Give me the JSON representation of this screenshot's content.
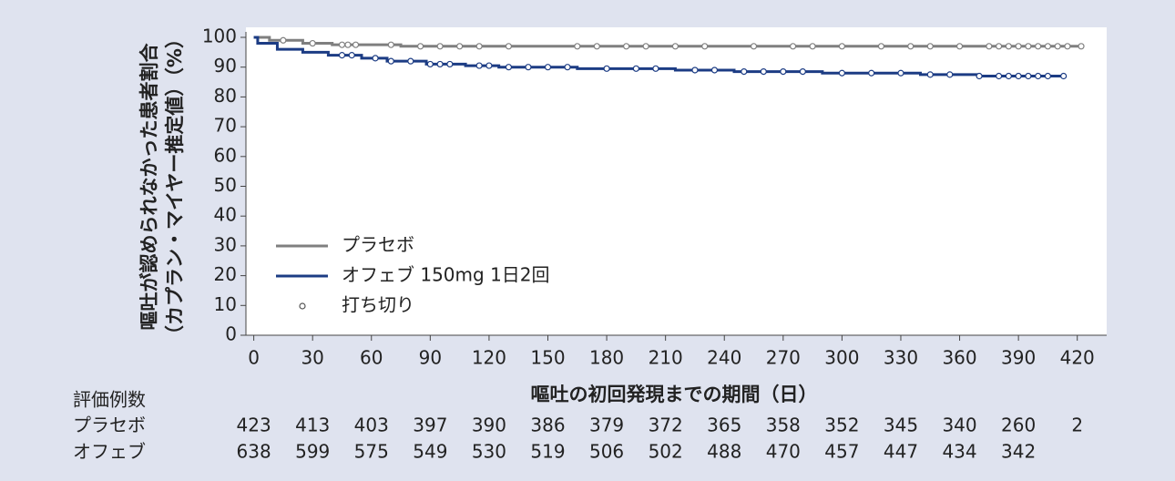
{
  "chart_data": {
    "type": "km",
    "y_label_lines": [
      "嘔吐が認められなかった患者割合",
      "（カプラン・マイヤー推定値）（%）"
    ],
    "x_label": "嘔吐の初回発現までの期間（日）",
    "xlim": [
      -4,
      435
    ],
    "ylim": [
      0,
      100
    ],
    "xticks": [
      0,
      30,
      60,
      90,
      120,
      150,
      180,
      210,
      240,
      270,
      300,
      330,
      360,
      390,
      420
    ],
    "yticks": [
      0,
      10,
      20,
      30,
      40,
      50,
      60,
      70,
      80,
      90,
      100
    ],
    "censor_label": "打ち切り",
    "series": [
      {
        "name": "プラセボ",
        "color": "#7f7f7f",
        "x": [
          0,
          8,
          8,
          25,
          25,
          40,
          40,
          75,
          75,
          422
        ],
        "values": [
          100,
          100,
          99,
          99,
          98,
          98,
          97.5,
          97.5,
          97,
          97
        ],
        "censor_x": [
          15,
          30,
          45,
          48,
          52,
          70,
          85,
          95,
          105,
          115,
          130,
          165,
          175,
          190,
          200,
          215,
          230,
          255,
          275,
          285,
          300,
          320,
          335,
          345,
          360,
          375,
          380,
          385,
          390,
          395,
          400,
          405,
          410,
          415,
          422
        ],
        "censor_values": [
          99,
          98,
          97.5,
          97.5,
          97.5,
          97.5,
          97,
          97,
          97,
          97,
          97,
          97,
          97,
          97,
          97,
          97,
          97,
          97,
          97,
          97,
          97,
          97,
          97,
          97,
          97,
          97,
          97,
          97,
          97,
          97,
          97,
          97,
          97,
          97,
          97
        ]
      },
      {
        "name": "オフェブ 150mg 1日2回",
        "color": "#1c3c84",
        "x": [
          0,
          2,
          2,
          12,
          12,
          25,
          25,
          38,
          38,
          55,
          55,
          68,
          68,
          88,
          88,
          108,
          108,
          125,
          125,
          165,
          165,
          215,
          215,
          245,
          245,
          290,
          290,
          340,
          340,
          370,
          370,
          413
        ],
        "values": [
          100,
          100,
          98,
          98,
          96,
          96,
          95,
          95,
          94,
          94,
          93,
          93,
          92,
          92,
          91,
          91,
          90.5,
          90.5,
          90,
          90,
          89.5,
          89.5,
          89,
          89,
          88.5,
          88.5,
          88,
          88,
          87.5,
          87.5,
          87,
          87
        ],
        "censor_x": [
          45,
          50,
          62,
          70,
          80,
          90,
          95,
          100,
          115,
          120,
          130,
          140,
          150,
          160,
          180,
          195,
          205,
          225,
          235,
          250,
          260,
          270,
          280,
          300,
          315,
          330,
          345,
          355,
          370,
          380,
          385,
          390,
          395,
          400,
          405,
          413
        ],
        "censor_values": [
          94,
          94,
          93,
          92,
          92,
          91,
          91,
          91,
          90.5,
          90.5,
          90,
          90,
          90,
          90,
          89.5,
          89.5,
          89.5,
          89,
          89,
          88.5,
          88.5,
          88.5,
          88.5,
          88,
          88,
          88,
          87.5,
          87.5,
          87,
          87,
          87,
          87,
          87,
          87,
          87,
          87
        ]
      }
    ],
    "risk_table": {
      "title": "評価例数",
      "rows": [
        {
          "name": "プラセボ",
          "values": [
            423,
            413,
            403,
            397,
            390,
            386,
            379,
            372,
            365,
            358,
            352,
            345,
            340,
            260,
            2
          ]
        },
        {
          "name": "オフェブ",
          "values": [
            638,
            599,
            575,
            549,
            530,
            519,
            506,
            502,
            488,
            470,
            457,
            447,
            434,
            342
          ]
        }
      ]
    }
  }
}
